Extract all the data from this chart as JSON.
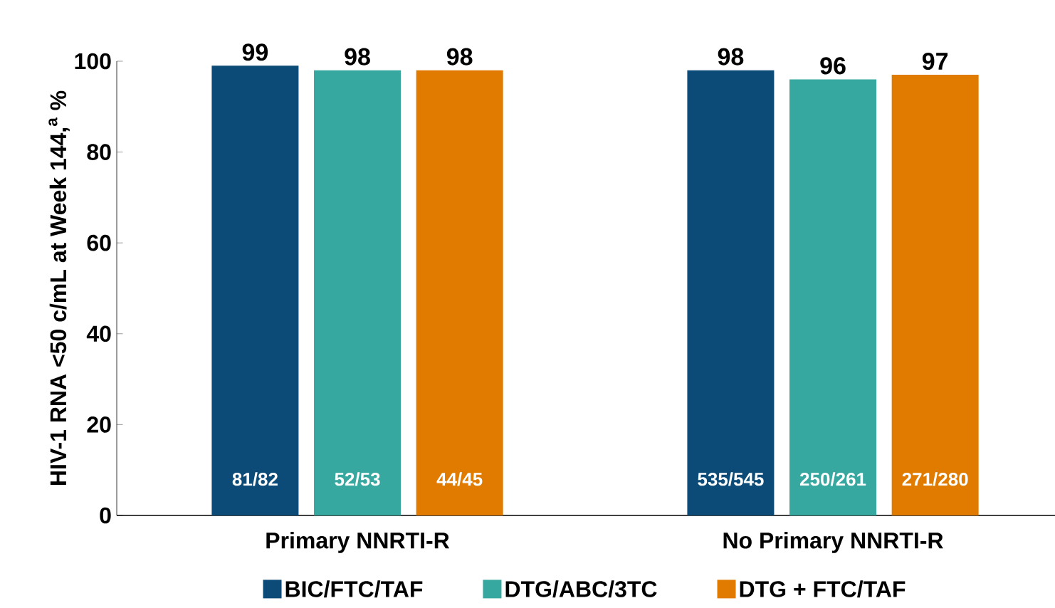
{
  "chart_data": {
    "type": "bar",
    "ylabel": "HIV-1 RNA <50 c/mL at Week 144,$^{a}$ %",
    "categories": [
      "Primary NNRTI-R",
      "No Primary NNRTI-R"
    ],
    "series": [
      {
        "name": "BIC/FTC/TAF",
        "color": "#0c4a78",
        "values": [
          99,
          98
        ]
      },
      {
        "name": "DTG/ABC/3TC",
        "color": "#36a8a0",
        "values": [
          98,
          96
        ]
      },
      {
        "name": "DTG + FTC/TAF",
        "color": "#e07b00",
        "values": [
          98,
          97
        ]
      }
    ],
    "ylim": [
      0,
      100
    ],
    "yticks": [
      0,
      20,
      40,
      60,
      80,
      100
    ],
    "data_labels": true,
    "legend": "bottom",
    "grid": false,
    "annotations": [
      "81/82",
      "52/53",
      "44/45",
      "535/545",
      "250/261",
      "271/280"
    ]
  }
}
